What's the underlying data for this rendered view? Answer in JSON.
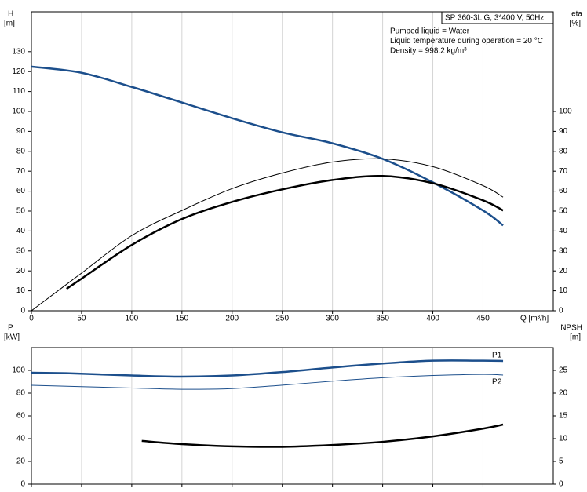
{
  "chart_data": [
    {
      "type": "line",
      "title": "SP 360-3L G, 3*400 V, 50Hz",
      "notes": [
        "Pumped liquid = Water",
        "Liquid temperature during operation = 20 °C",
        "Density = 998.2 kg/m³"
      ],
      "y_label": "H",
      "y_unit": "[m]",
      "y2_label": "eta",
      "y2_unit": "[%]",
      "x_label": "Q [m³/h]",
      "xlim": [
        0,
        520
      ],
      "xticks": [
        0,
        50,
        100,
        150,
        200,
        250,
        300,
        350,
        400,
        450
      ],
      "show_x_tick_labels": true,
      "ylim": [
        0,
        150
      ],
      "yticks": [
        0,
        10,
        20,
        30,
        40,
        50,
        60,
        70,
        80,
        90,
        100,
        110,
        120,
        130
      ],
      "y2lim": [
        0,
        150
      ],
      "y2ticks": [
        0,
        10,
        20,
        30,
        40,
        50,
        60,
        70,
        80,
        90,
        100
      ],
      "grid": "x",
      "series": [
        {
          "color": "#1c4f8c",
          "weight": "thick",
          "x": [
            0,
            50,
            100,
            150,
            200,
            250,
            300,
            350,
            400,
            450,
            470
          ],
          "values": [
            122.5,
            119.4,
            112.3,
            104.5,
            96.6,
            89.5,
            84,
            76.2,
            64.4,
            50.3,
            42.8
          ]
        },
        {
          "color": "#000000",
          "weight": "thin",
          "axis": "y2",
          "x": [
            0,
            50,
            100,
            150,
            200,
            250,
            300,
            350,
            400,
            450,
            470
          ],
          "values": [
            0,
            18.9,
            37.7,
            50.3,
            61.3,
            69.1,
            74.6,
            76.2,
            72.3,
            62.8,
            57
          ]
        },
        {
          "color": "#000000",
          "weight": "thick",
          "axis": "y2",
          "x": [
            35,
            50,
            100,
            150,
            200,
            250,
            300,
            350,
            400,
            450,
            470
          ],
          "values": [
            11,
            16.1,
            33,
            46,
            54.6,
            60.9,
            65.6,
            67.6,
            64,
            55.4,
            50.3
          ]
        }
      ]
    },
    {
      "type": "line",
      "y_label": "P",
      "y_unit": "[kW]",
      "y2_label": "NPSH",
      "y2_unit": "[m]",
      "xlim": [
        0,
        520
      ],
      "xticks": [
        0,
        50,
        100,
        150,
        200,
        250,
        300,
        350,
        400,
        450
      ],
      "show_x_tick_labels": false,
      "ylim": [
        0,
        120
      ],
      "yticks": [
        0,
        20,
        40,
        60,
        80,
        100
      ],
      "y2lim": [
        0,
        30
      ],
      "y2ticks": [
        0,
        5,
        10,
        15,
        20,
        25
      ],
      "grid": "x",
      "series": [
        {
          "name": "P1",
          "color": "#1c4f8c",
          "weight": "thick",
          "x": [
            0,
            35,
            100,
            150,
            200,
            250,
            300,
            350,
            400,
            450,
            470
          ],
          "values": [
            97.9,
            97.5,
            95.5,
            94.5,
            95.5,
            98.5,
            102.5,
            106,
            108.5,
            108.5,
            108.3
          ]
        },
        {
          "name": "P2",
          "color": "#1c4f8c",
          "weight": "thin",
          "x": [
            0,
            100,
            150,
            200,
            250,
            300,
            350,
            400,
            450,
            470
          ],
          "values": [
            86.9,
            84.5,
            83.4,
            84,
            87,
            90.5,
            93.5,
            95.5,
            96.5,
            95.9
          ]
        },
        {
          "color": "#000000",
          "weight": "thick",
          "axis": "y2",
          "x": [
            110,
            150,
            200,
            250,
            300,
            350,
            400,
            450,
            470
          ],
          "values": [
            9.5,
            8.8,
            8.3,
            8.2,
            8.6,
            9.3,
            10.5,
            12.2,
            13.1
          ]
        }
      ]
    }
  ]
}
